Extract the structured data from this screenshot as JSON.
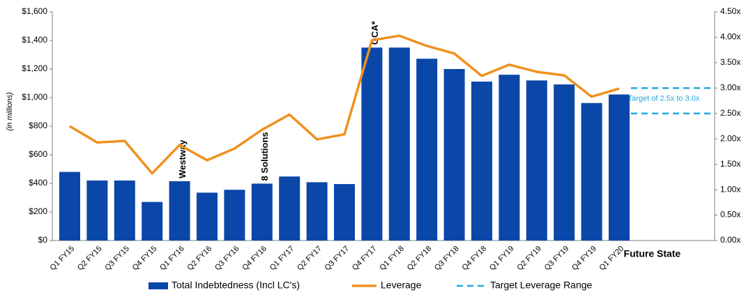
{
  "chart_data": {
    "type": "bar_line",
    "y_label": "(in millions)",
    "categories": [
      "Q1 FY15",
      "Q2 FY15",
      "Q3 FY15",
      "Q4 FY15",
      "Q1 FY16",
      "Q2 FY16",
      "Q3 FY16",
      "Q4 FY16",
      "Q1 FY17",
      "Q2 FY17",
      "Q3 FY17",
      "Q4 FY17",
      "Q1 FY18",
      "Q2 FY18",
      "Q3 FY18",
      "Q4 FY18",
      "Q1 FY19",
      "Q2 FY19",
      "Q3 FY19",
      "Q4 FY19",
      "Q1 FY20",
      "Future State"
    ],
    "series": [
      {
        "name": "Total Indebtedness (Incl LC's)",
        "color": "#0a47a9",
        "type": "bar",
        "values": [
          480,
          420,
          420,
          270,
          415,
          335,
          355,
          398,
          448,
          408,
          395,
          1350,
          1350,
          1272,
          1200,
          1112,
          1160,
          1120,
          1092,
          962,
          1022,
          null
        ]
      },
      {
        "name": "Leverage",
        "color": "#f0901e",
        "type": "line",
        "axis": "y2",
        "values": [
          2.25,
          1.93,
          1.96,
          1.32,
          1.88,
          1.58,
          1.81,
          2.18,
          2.48,
          1.99,
          2.09,
          3.94,
          4.03,
          3.83,
          3.68,
          3.24,
          3.46,
          3.32,
          3.25,
          2.83,
          2.99,
          null
        ]
      }
    ],
    "target": {
      "name": "Target Leverage Range",
      "color": "#1fa8e0",
      "values": [
        3.0,
        2.5
      ],
      "label": "Target of 2.5x to 3.0x"
    },
    "annotations": [
      {
        "text": "Westway",
        "category": 4
      },
      {
        "text": "8 Solutions",
        "category": 7
      },
      {
        "text": "GCA*",
        "category": 11
      }
    ],
    "ylim": [
      0,
      1600
    ],
    "yticks": [
      {
        "value": 0,
        "label": "$0"
      },
      {
        "value": 200,
        "label": "$200"
      },
      {
        "value": 400,
        "label": "$400"
      },
      {
        "value": 600,
        "label": "$600"
      },
      {
        "value": 800,
        "label": "$800"
      },
      {
        "value": 1000,
        "label": "$1,000"
      },
      {
        "value": 1200,
        "label": "$1,200"
      },
      {
        "value": 1400,
        "label": "$1,400"
      },
      {
        "value": 1600,
        "label": "$1,600"
      }
    ],
    "y2lim": [
      0,
      4.5
    ],
    "y2ticks": [
      {
        "value": 0,
        "label": "0.00x"
      },
      {
        "value": 0.5,
        "label": "0.50x"
      },
      {
        "value": 1,
        "label": "1.00x"
      },
      {
        "value": 1.5,
        "label": "1.50x"
      },
      {
        "value": 2,
        "label": "2.00x"
      },
      {
        "value": 2.5,
        "label": "2.50x"
      },
      {
        "value": 3,
        "label": "3.00x"
      },
      {
        "value": 3.5,
        "label": "3.50x"
      },
      {
        "value": 4,
        "label": "4.00x"
      },
      {
        "value": 4.5,
        "label": "4.50x"
      }
    ]
  }
}
